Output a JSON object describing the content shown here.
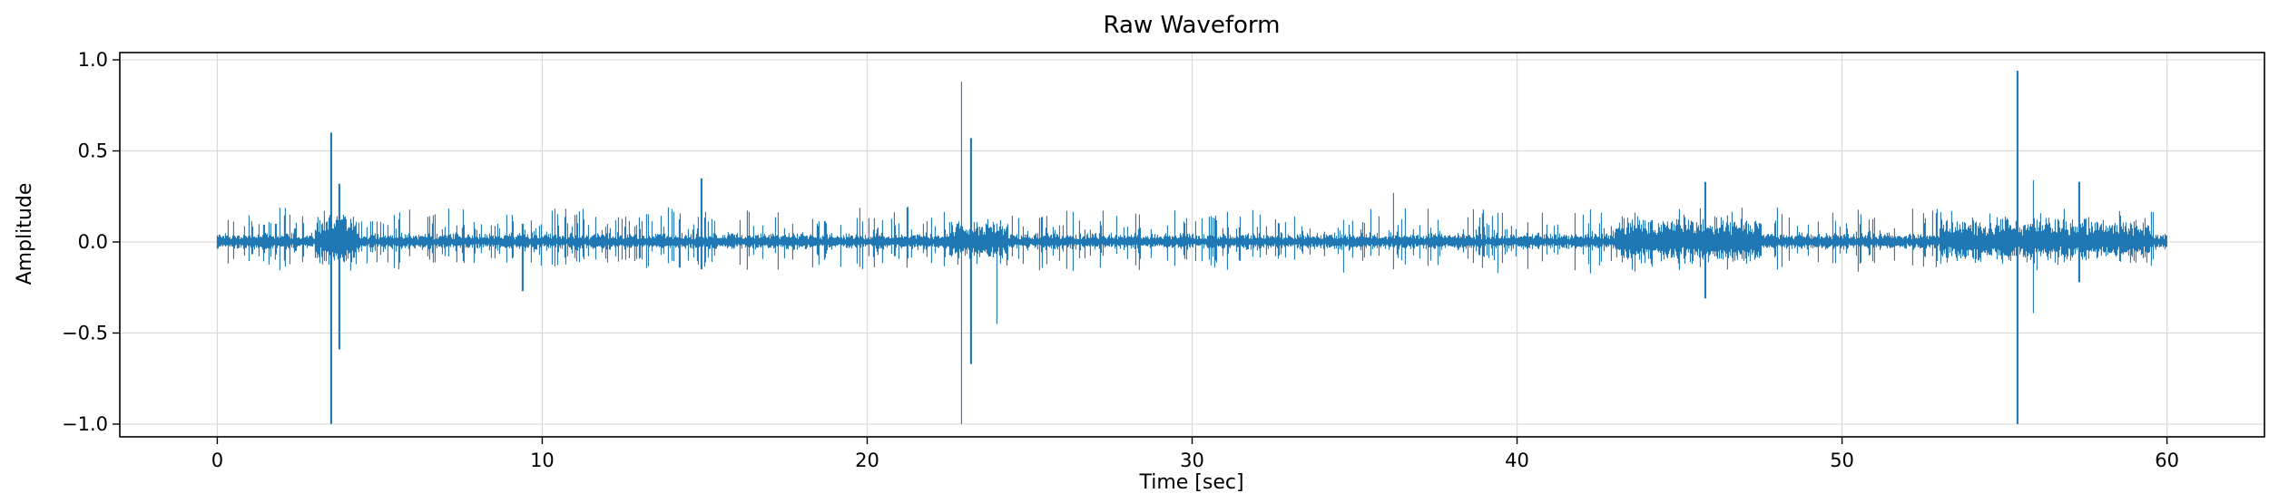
{
  "chart_data": {
    "type": "line",
    "title": "Raw Waveform",
    "xlabel": "Time [sec]",
    "ylabel": "Amplitude",
    "xlim": [
      -3,
      63
    ],
    "ylim": [
      -1.07,
      1.04
    ],
    "xticks": [
      0,
      10,
      20,
      30,
      40,
      50,
      60
    ],
    "xtick_labels": [
      "0",
      "10",
      "20",
      "30",
      "40",
      "50",
      "60"
    ],
    "yticks": [
      -1.0,
      -0.5,
      0.0,
      0.5,
      1.0
    ],
    "ytick_labels": [
      "−1.0",
      "−0.5",
      "0.0",
      "0.5",
      "1.0"
    ],
    "grid": true,
    "line_color": "#1f77b4",
    "series": [
      {
        "x_range": [
          0,
          60
        ],
        "baseline_amplitude": 0.03,
        "burst_peaks": [
          {
            "t": 3.5,
            "max": 0.6,
            "min": -1.0
          },
          {
            "t": 3.75,
            "max": 0.32,
            "min": -0.59
          },
          {
            "t": 14.9,
            "max": 0.35,
            "min": -0.15
          },
          {
            "t": 9.4,
            "max": 0.1,
            "min": -0.27
          },
          {
            "t": 22.9,
            "max": 0.88,
            "min": -1.0
          },
          {
            "t": 23.2,
            "max": 0.57,
            "min": -0.67
          },
          {
            "t": 24.0,
            "max": 0.1,
            "min": -0.45
          },
          {
            "t": 36.2,
            "max": 0.27,
            "min": -0.15
          },
          {
            "t": 45.8,
            "max": 0.33,
            "min": -0.31
          },
          {
            "t": 55.4,
            "max": 0.94,
            "min": -1.0
          },
          {
            "t": 55.9,
            "max": 0.34,
            "min": -0.39
          },
          {
            "t": 57.3,
            "max": 0.33,
            "min": -0.22
          }
        ],
        "active_regions": [
          {
            "start": 3.0,
            "end": 4.3,
            "level": 0.14
          },
          {
            "start": 22.5,
            "end": 24.3,
            "level": 0.1
          },
          {
            "start": 43.0,
            "end": 47.5,
            "level": 0.12
          },
          {
            "start": 53.0,
            "end": 59.5,
            "level": 0.11
          }
        ]
      }
    ]
  }
}
